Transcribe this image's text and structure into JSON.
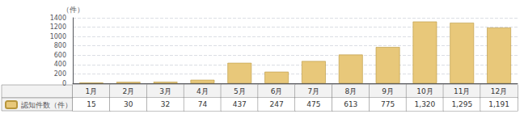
{
  "chart_data": {
    "type": "bar",
    "ylabel": "（件）",
    "categories": [
      "1月",
      "2月",
      "3月",
      "4月",
      "5月",
      "6月",
      "7月",
      "8月",
      "9月",
      "10月",
      "11月",
      "12月"
    ],
    "series": [
      {
        "name": "認知件数（件）",
        "color": "#E8C87A",
        "values": [
          15,
          30,
          32,
          74,
          437,
          247,
          475,
          613,
          775,
          1320,
          1295,
          1191
        ],
        "value_labels": [
          "15",
          "30",
          "32",
          "74",
          "437",
          "247",
          "475",
          "613",
          "775",
          "1,320",
          "1,295",
          "1,191"
        ]
      }
    ],
    "ylim": [
      0,
      1400
    ],
    "yticks": [
      0,
      200,
      400,
      600,
      800,
      1000,
      1200,
      1400
    ],
    "grid": true,
    "legend": "lower left"
  }
}
